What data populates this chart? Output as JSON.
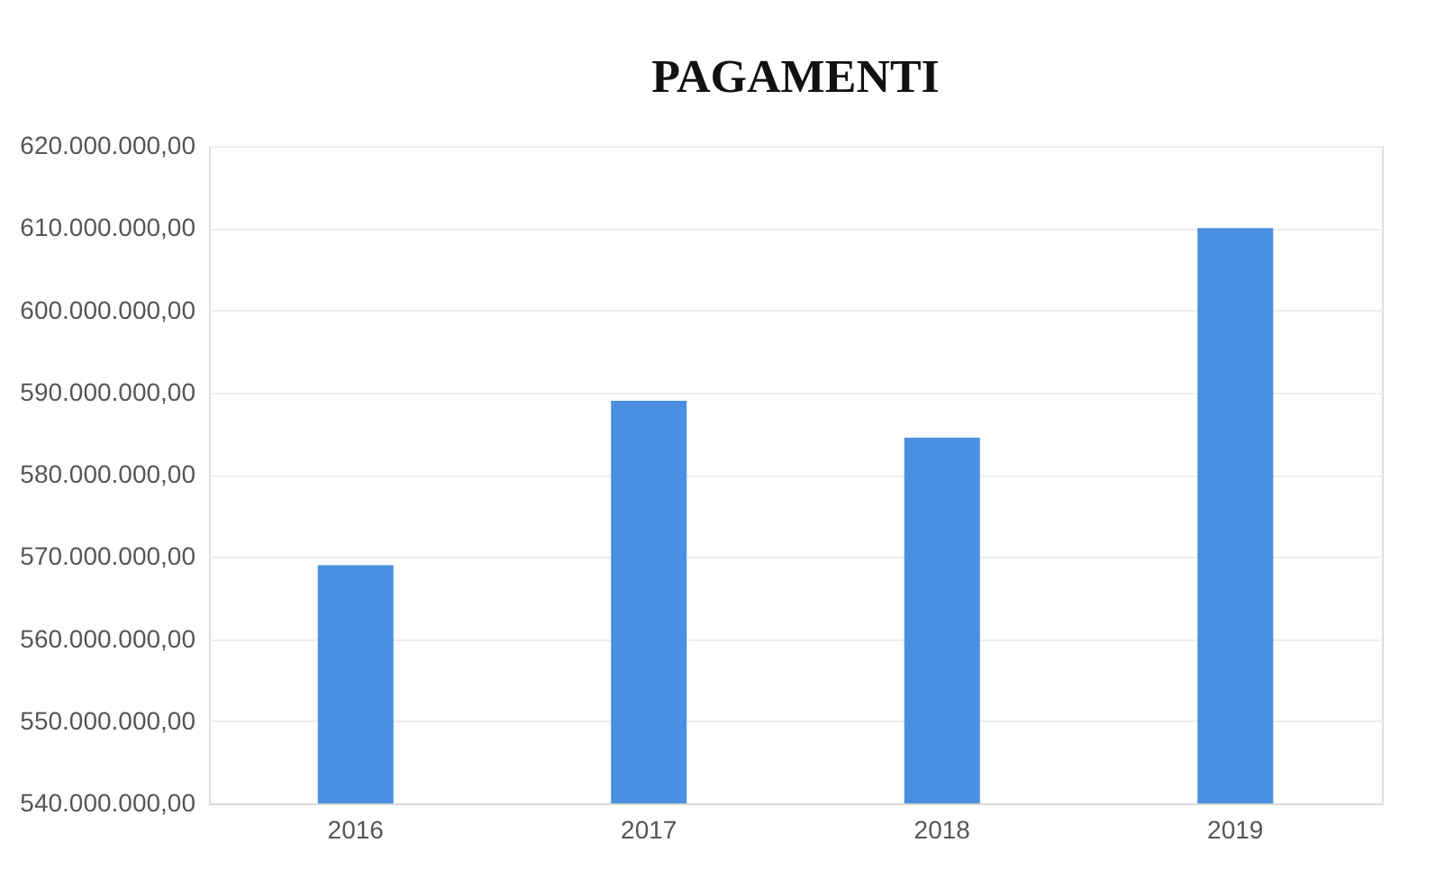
{
  "chart_data": {
    "type": "bar",
    "title": "PAGAMENTI",
    "categories": [
      "2016",
      "2017",
      "2018",
      "2019"
    ],
    "values": [
      569000000,
      589000000,
      584500000,
      610000000
    ],
    "color": "#4a8fe0",
    "ylim": [
      540000000,
      620000000
    ],
    "yticks": [
      {
        "value": 540000000,
        "label": "540.000.000,00"
      },
      {
        "value": 550000000,
        "label": "550.000.000,00"
      },
      {
        "value": 560000000,
        "label": "560.000.000,00"
      },
      {
        "value": 570000000,
        "label": "570.000.000,00"
      },
      {
        "value": 580000000,
        "label": "580.000.000,00"
      },
      {
        "value": 590000000,
        "label": "590.000.000,00"
      },
      {
        "value": 600000000,
        "label": "600.000.000,00"
      },
      {
        "value": 610000000,
        "label": "610.000.000,00"
      },
      {
        "value": 620000000,
        "label": "620.000.000,00"
      }
    ],
    "grid": "y"
  }
}
